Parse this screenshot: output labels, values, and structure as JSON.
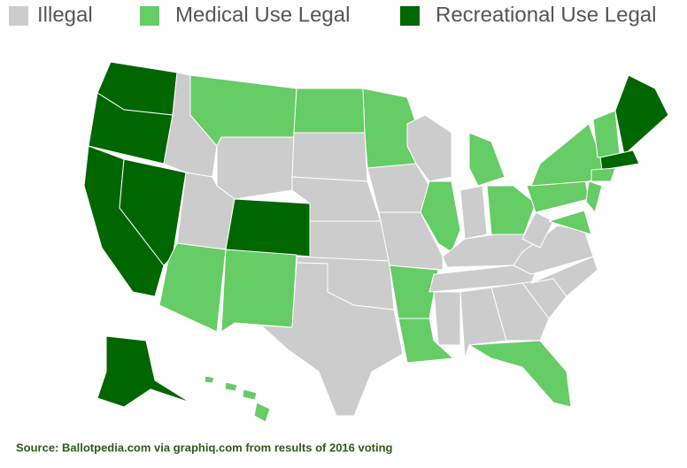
{
  "legend": [
    {
      "label": "Illegal",
      "color": "#cccccc"
    },
    {
      "label": "Medical Use Legal",
      "color": "#66cc66"
    },
    {
      "label": "Recreational Use Legal",
      "color": "#006600"
    }
  ],
  "source": "Source: Ballotpedia.com via graphiq.com from results of 2016 voting"
}
